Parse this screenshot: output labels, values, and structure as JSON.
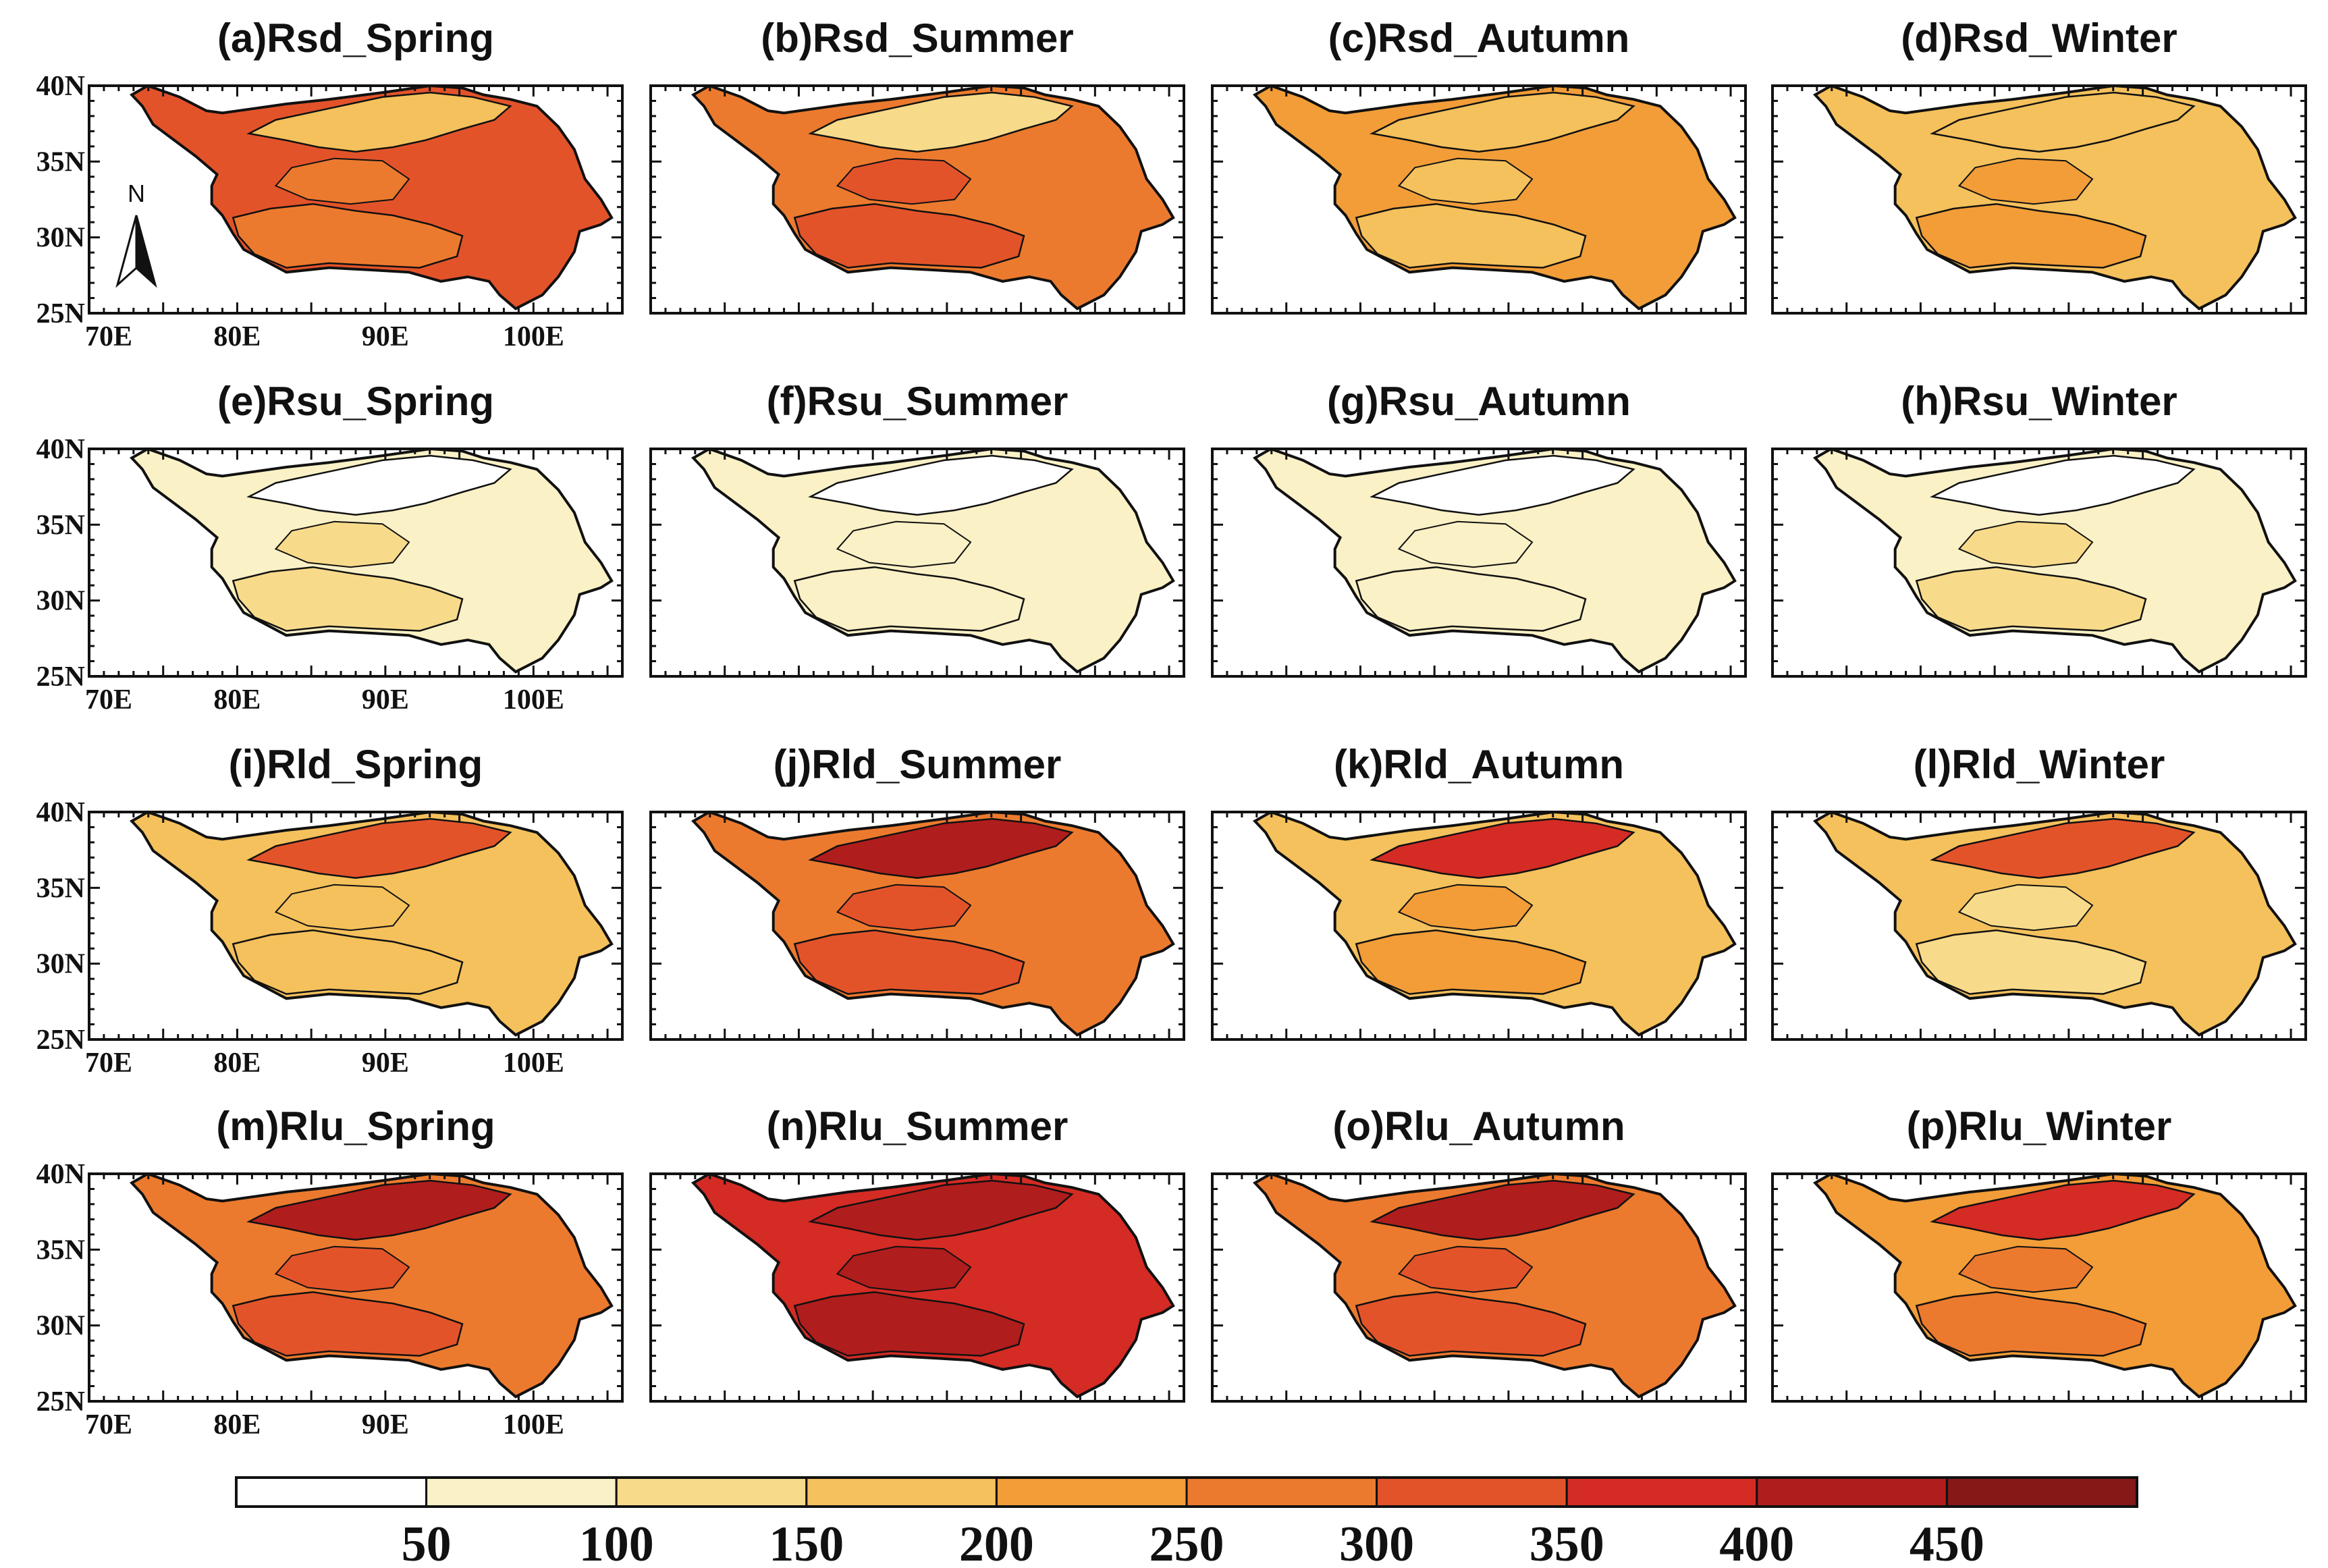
{
  "figure": {
    "colorbar": {
      "colors": [
        "#ffffff",
        "#fbf1c6",
        "#f8db8a",
        "#f5c15c",
        "#f29d38",
        "#ec7a2e",
        "#e3532a",
        "#d42b24",
        "#b01d1d",
        "#871818"
      ],
      "tick_labels": [
        "50",
        "100",
        "150",
        "200",
        "250",
        "300",
        "350",
        "400",
        "450"
      ],
      "units_min": 0,
      "units_max": 500
    },
    "axes": {
      "lat_labels": [
        "40N",
        "35N",
        "30N",
        "25N"
      ],
      "lon_labels": [
        "70E",
        "80E",
        "90E",
        "100E"
      ]
    },
    "north_arrow_label": "N",
    "rows": [
      {
        "variable": "Rsd",
        "panels": [
          {
            "title": "(a)Rsd_Spring",
            "base": 6,
            "alt": 3,
            "low": 5
          },
          {
            "title": "(b)Rsd_Summer",
            "base": 5,
            "alt": 2,
            "low": 6
          },
          {
            "title": "(c)Rsd_Autumn",
            "base": 4,
            "alt": 3,
            "low": 3
          },
          {
            "title": "(d)Rsd_Winter",
            "base": 3,
            "alt": 3,
            "low": 4
          }
        ]
      },
      {
        "variable": "Rsu",
        "panels": [
          {
            "title": "(e)Rsu_Spring",
            "base": 1,
            "alt": 0,
            "low": 2
          },
          {
            "title": "(f)Rsu_Summer",
            "base": 1,
            "alt": 0,
            "low": 1
          },
          {
            "title": "(g)Rsu_Autumn",
            "base": 1,
            "alt": 0,
            "low": 1
          },
          {
            "title": "(h)Rsu_Winter",
            "base": 1,
            "alt": 0,
            "low": 2
          }
        ]
      },
      {
        "variable": "Rld",
        "panels": [
          {
            "title": "(i)Rld_Spring",
            "base": 3,
            "alt": 6,
            "low": 3
          },
          {
            "title": "(j)Rld_Summer",
            "base": 5,
            "alt": 8,
            "low": 6
          },
          {
            "title": "(k)Rld_Autumn",
            "base": 3,
            "alt": 7,
            "low": 4
          },
          {
            "title": "(l)Rld_Winter",
            "base": 3,
            "alt": 6,
            "low": 2
          }
        ]
      },
      {
        "variable": "Rlu",
        "panels": [
          {
            "title": "(m)Rlu_Spring",
            "base": 5,
            "alt": 8,
            "low": 6
          },
          {
            "title": "(n)Rlu_Summer",
            "base": 7,
            "alt": 8,
            "low": 8
          },
          {
            "title": "(o)Rlu_Autumn",
            "base": 5,
            "alt": 8,
            "low": 6
          },
          {
            "title": "(p)Rlu_Winter",
            "base": 4,
            "alt": 7,
            "low": 5
          }
        ]
      }
    ]
  }
}
